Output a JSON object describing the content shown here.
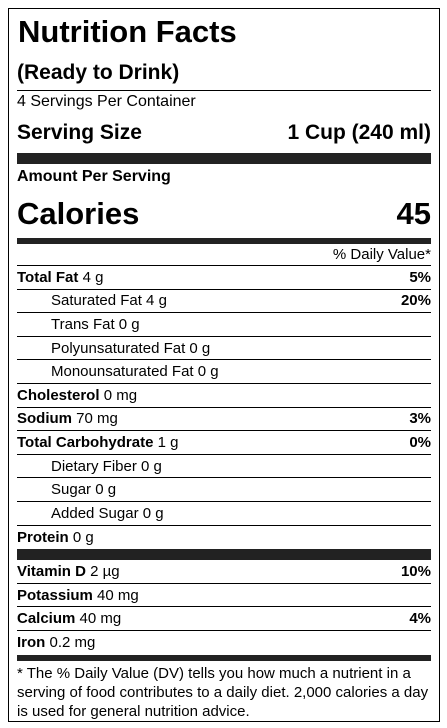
{
  "header": {
    "title": "Nutrition Facts",
    "subtitle": "(Ready to Drink)",
    "servings": "4 Servings Per Container",
    "serving_size_label": "Serving Size",
    "serving_size_value": "1 Cup (240 ml)",
    "amount_per_serving": "Amount Per Serving",
    "calories_label": "Calories",
    "calories_value": "45",
    "dv_header": "% Daily Value*"
  },
  "nutrients": [
    {
      "name": "Total Fat",
      "amount": "4 g",
      "dv": "5%",
      "subs": [
        {
          "name": "Saturated Fat 4 g",
          "dv": "20%"
        },
        {
          "name": "Trans Fat 0 g"
        },
        {
          "name": "Polyunsaturated Fat 0 g"
        },
        {
          "name": "Monounsaturated Fat 0 g"
        }
      ]
    },
    {
      "name": "Cholesterol",
      "amount": "0 mg"
    },
    {
      "name": "Sodium",
      "amount": "70 mg",
      "dv": "3%"
    },
    {
      "name": "Total Carbohydrate",
      "amount": "1 g",
      "dv": "0%",
      "subs": [
        {
          "name": "Dietary Fiber 0 g"
        },
        {
          "name": "Sugar 0 g"
        },
        {
          "name": "Added Sugar 0 g"
        }
      ]
    },
    {
      "name": "Protein",
      "amount": "0 g"
    }
  ],
  "vitamins": [
    {
      "name": "Vitamin D",
      "amount": "2 µg",
      "dv": "10%"
    },
    {
      "name": "Potassium",
      "amount": "40 mg"
    },
    {
      "name": "Calcium",
      "amount": "40 mg",
      "dv": "4%"
    },
    {
      "name": "Iron",
      "amount": "0.2 mg"
    }
  ],
  "footnote": "* The % Daily Value (DV) tells you how much a nutrient in a serving of food contributes to a daily diet. 2,000 calories a day is used for general nutrition advice."
}
